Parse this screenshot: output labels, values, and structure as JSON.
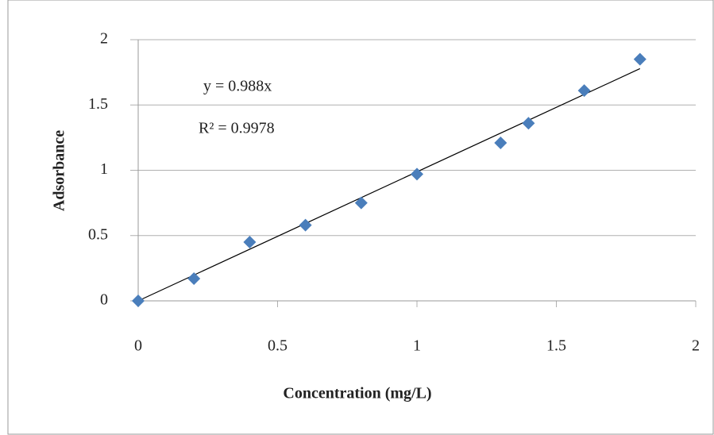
{
  "chart_data": {
    "type": "scatter",
    "x_label": "Concentration (mg/L)",
    "y_label": "Adsorbance",
    "x": [
      0,
      0.2,
      0.4,
      0.6,
      0.8,
      1.0,
      1.3,
      1.4,
      1.6,
      1.8
    ],
    "values": [
      0,
      0.17,
      0.45,
      0.58,
      0.75,
      0.97,
      1.21,
      1.36,
      1.61,
      1.85
    ],
    "color": "#4a7ebb",
    "xlim": [
      0,
      2
    ],
    "ylim": [
      0,
      2
    ],
    "xticks": [
      0,
      0.5,
      1,
      1.5,
      2
    ],
    "yticks": [
      0,
      0.5,
      1,
      1.5,
      2
    ],
    "grid": true,
    "trendline": {
      "slope": 0.988,
      "equation": "y = 0.988x",
      "r_squared": "R² = 0.9978"
    }
  }
}
